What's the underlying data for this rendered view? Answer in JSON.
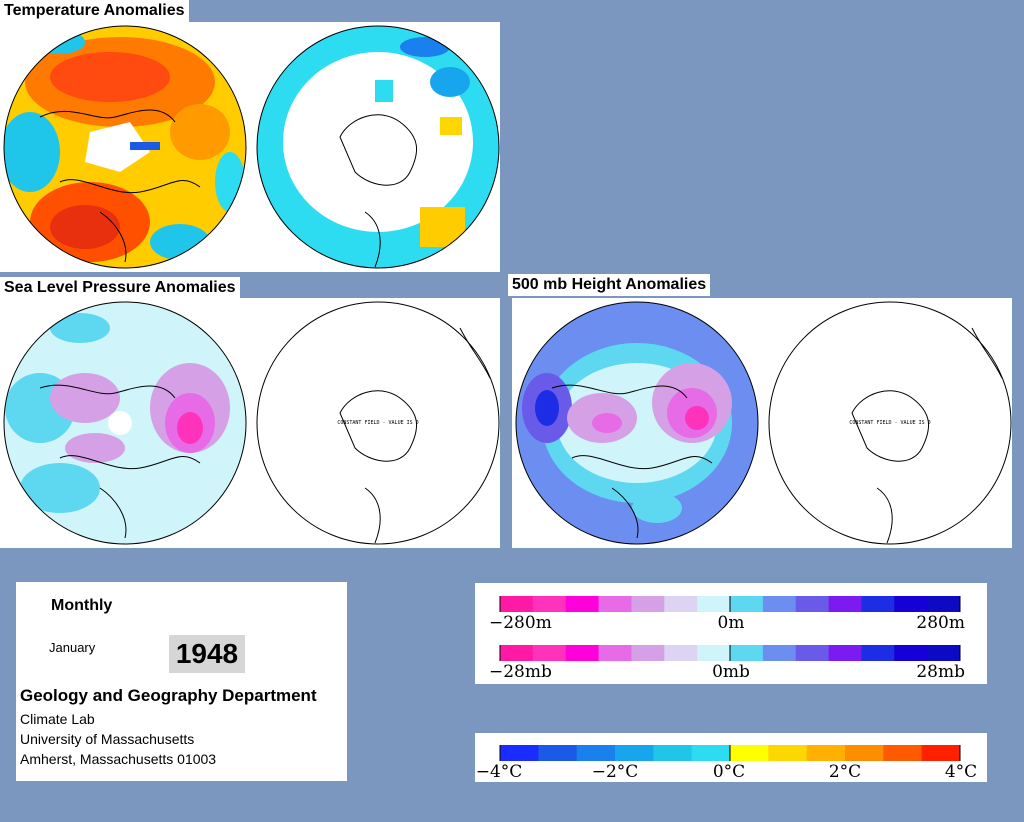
{
  "titles": {
    "temperature": "Temperature Anomalies",
    "slp": "Sea Level Pressure Anomalies",
    "height500": "500 mb Height Anomalies"
  },
  "maps": {
    "constant_field_text": "CONSTANT FIELD - VALUE IS 0"
  },
  "info": {
    "period": "Monthly",
    "month": "January",
    "year": "1948",
    "department": "Geology and Geography Department",
    "lab": "Climate Lab",
    "university": "University of Massachusetts",
    "address": "Amherst, Massachusetts 01003"
  },
  "legends": {
    "height": {
      "left": "−280m",
      "center": "0m",
      "right": "280m"
    },
    "pressure": {
      "left": "−28mb",
      "center": "0mb",
      "right": "28mb"
    },
    "temperature": [
      "−4°C",
      "−2°C",
      "0°C",
      "2°C",
      "4°C"
    ]
  },
  "colors": {
    "background": "#7b96bf",
    "anomaly_scale_neg": [
      "#ff1aa5",
      "#ff33bb",
      "#ff00dd",
      "#e76be7",
      "#d6a0e6",
      "#dcd4f2",
      "#cff5fa"
    ],
    "anomaly_scale_pos": [
      "#cff5fa",
      "#5ed8f0",
      "#6b8ef0",
      "#6a5ae9",
      "#7c1af2",
      "#1d2de6",
      "#1600d8",
      "#0c0ac2"
    ],
    "temperature_scale": [
      "#1a2cff",
      "#1a5ae6",
      "#1a80ee",
      "#17a6ee",
      "#20c6ea",
      "#2ddcf0",
      "#ffff00",
      "#ffd700",
      "#ffb000",
      "#ff8d00",
      "#ff5a00",
      "#ff2000"
    ]
  }
}
